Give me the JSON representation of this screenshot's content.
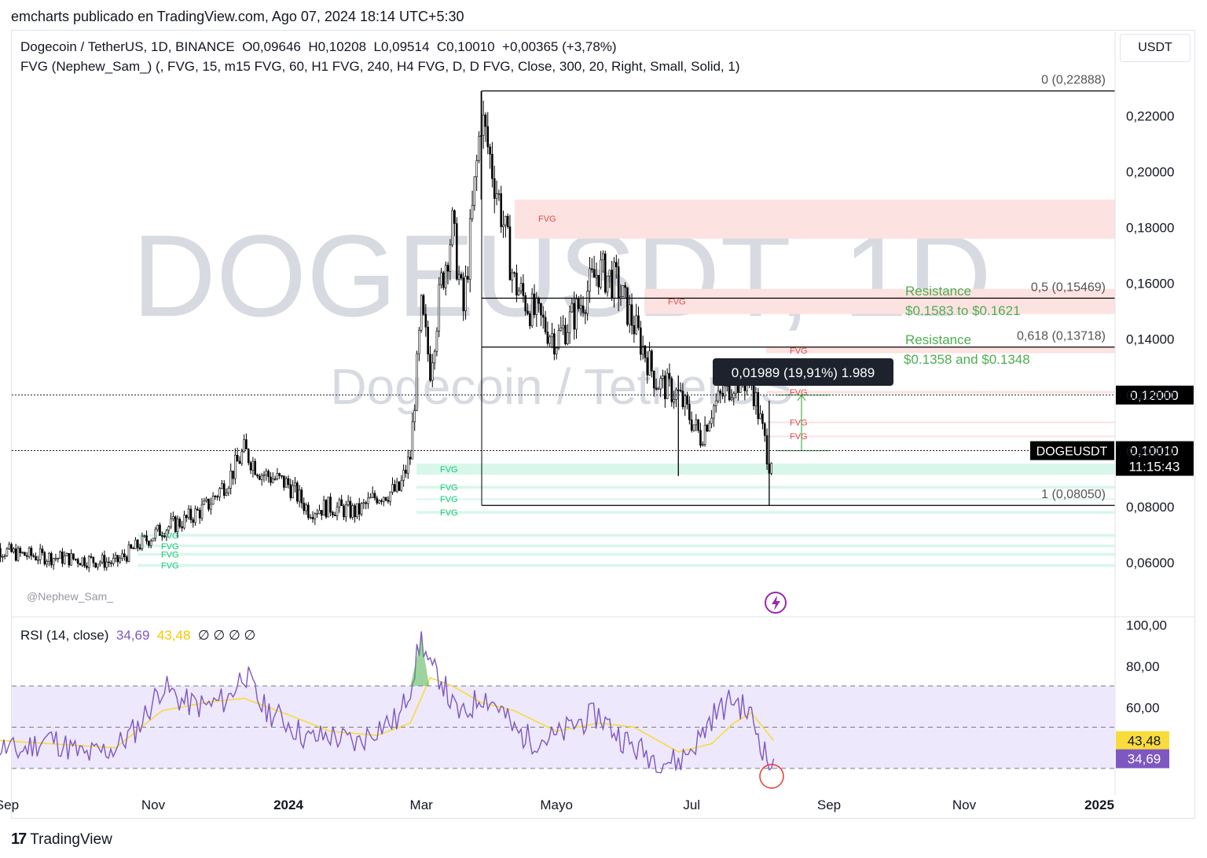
{
  "header": {
    "published": "emcharts publicado en TradingView.com, Ago 07, 2024 18:14 UTC+5:30",
    "symbol_line": "Dogecoin / TetherUS, 1D, BINANCE  O0,09646  H0,10208  L0,09514  C0,10010  +0,00365 (+3,78%)",
    "indicator_line": "FVG (Nephew_Sam_) (, FVG, 15, m15 FVG, 60, H1 FVG, 240, H4 FVG, D, D FVG, Close, 300, 20, Right, Small, Solid, 1)",
    "currency_button": "USDT"
  },
  "watermark": {
    "big": "DOGEUSDT, 1D",
    "sub": "Dogecoin / TetherUS",
    "author": "@Nephew_Sam_"
  },
  "footer": {
    "logo": "17",
    "brand": "TradingView"
  },
  "rsi_legend": {
    "name": "RSI (14, close)",
    "rsi": "34,69",
    "ma": "43,48",
    "extras": "∅ ∅ ∅ ∅"
  },
  "colors": {
    "candle": "#000000",
    "fib": "#000000",
    "fvg_bear": "#fde2e2",
    "fvg_bull": "#d8f7ea",
    "fvg_bear_text": "#e04a4a",
    "fvg_bull_text": "#17c77a",
    "resistance_text": "#4caf50",
    "rsi_line": "#7e57c2",
    "rsi_ma": "#f7dc3c",
    "rsi_band": "#ede8fb",
    "circle": "#e53935"
  },
  "chart_data": [
    {
      "type": "candlestick",
      "symbol": "DOGEUSDT",
      "timeframe": "1D",
      "x_axis_labels": [
        "Sep",
        "Nov",
        "2024",
        "Mar",
        "Mayo",
        "Jul",
        "Sep",
        "Nov",
        "2025"
      ],
      "y_ticks": [
        "0,22000",
        "0,20000",
        "0,18000",
        "0,16000",
        "0,14000",
        "0,12000",
        "0,10000",
        "0,08000",
        "0,06000"
      ],
      "ylim": [
        0.052,
        0.236
      ],
      "series": [
        {
          "name": "",
          "x": [
            "2023-08-17",
            "2023-09-01",
            "2023-09-15",
            "2023-10-01",
            "2023-10-15",
            "2023-10-25",
            "2023-11-05",
            "2023-11-15",
            "2023-11-25",
            "2023-12-05",
            "2023-12-12",
            "2023-12-20",
            "2024-01-01",
            "2024-01-10",
            "2024-01-20",
            "2024-02-01",
            "2024-02-10",
            "2024-02-20",
            "2024-02-25",
            "2024-03-01",
            "2024-03-05",
            "2024-03-10",
            "2024-03-15",
            "2024-03-20",
            "2024-03-28",
            "2024-04-05",
            "2024-04-12",
            "2024-04-20",
            "2024-05-01",
            "2024-05-10",
            "2024-05-20",
            "2024-05-28",
            "2024-06-05",
            "2024-06-15",
            "2024-06-25",
            "2024-07-05",
            "2024-07-10",
            "2024-07-20",
            "2024-07-28",
            "2024-08-05",
            "2024-08-07"
          ],
          "close": [
            0.066,
            0.063,
            0.062,
            0.061,
            0.06,
            0.066,
            0.072,
            0.075,
            0.08,
            0.09,
            0.1,
            0.092,
            0.088,
            0.079,
            0.08,
            0.078,
            0.084,
            0.086,
            0.098,
            0.15,
            0.13,
            0.16,
            0.18,
            0.15,
            0.22,
            0.19,
            0.16,
            0.15,
            0.14,
            0.15,
            0.165,
            0.16,
            0.145,
            0.125,
            0.12,
            0.105,
            0.115,
            0.125,
            0.125,
            0.096,
            0.1001
          ]
        }
      ],
      "horizontal_lines": [
        {
          "label": "0 (0,22888)",
          "value": 0.22888
        },
        {
          "label": "0,5 (0,15469)",
          "value": 0.15469
        },
        {
          "label": "0,618 (0,13718)",
          "value": 0.13718
        },
        {
          "label": "1 (0,08050)",
          "value": 0.0805
        }
      ],
      "price_labels": [
        {
          "label": "0,12000",
          "value": 0.12
        },
        {
          "label": "0,10010",
          "value": 0.1001,
          "name": "DOGEUSDT",
          "countdown": "11:15:43"
        }
      ],
      "annotations": [
        {
          "text": "Resistance",
          "sub": "$0.1583 to $0.1621"
        },
        {
          "text": "Resistance",
          "sub": "$0.1358 and $0.1348"
        },
        {
          "text": "0,01989 (19,91%) 1.989"
        }
      ],
      "fvg_zones": [
        {
          "label": "FVG",
          "kind": "bearish",
          "low": 0.176,
          "high": 0.19
        },
        {
          "label": "FVG",
          "kind": "bearish",
          "low": 0.149,
          "high": 0.158
        },
        {
          "label": "FVG",
          "kind": "bearish",
          "low": 0.135,
          "high": 0.137
        },
        {
          "label": "FVG",
          "kind": "bearish",
          "low": 0.1205,
          "high": 0.1215
        },
        {
          "label": "FVG",
          "kind": "bearish",
          "low": 0.11,
          "high": 0.1105
        },
        {
          "label": "FVG",
          "kind": "bearish",
          "low": 0.105,
          "high": 0.1055
        },
        {
          "label": "FVG",
          "kind": "bullish",
          "low": 0.0915,
          "high": 0.0955
        },
        {
          "label": "FVG",
          "kind": "bullish",
          "low": 0.0865,
          "high": 0.0875
        },
        {
          "label": "FVG",
          "kind": "bullish",
          "low": 0.0825,
          "high": 0.083
        },
        {
          "label": "FVG",
          "kind": "bullish",
          "low": 0.0775,
          "high": 0.0785
        },
        {
          "label": "FVG",
          "kind": "bullish",
          "low": 0.0693,
          "high": 0.0703
        },
        {
          "label": "FVG",
          "kind": "bullish",
          "low": 0.0655,
          "high": 0.0665
        },
        {
          "label": "FVG",
          "kind": "bullish",
          "low": 0.0625,
          "high": 0.0635
        },
        {
          "label": "FVG",
          "kind": "bullish",
          "low": 0.0585,
          "high": 0.0595
        }
      ]
    },
    {
      "type": "line",
      "title": "RSI (14, close)",
      "y_ticks": [
        "100,00",
        "80,00",
        "60,00"
      ],
      "ylim": [
        20,
        100
      ],
      "band": [
        30,
        70
      ],
      "midline": 50,
      "series": [
        {
          "name": "RSI",
          "last_label": "34,69",
          "x": [
            "2023-08-17",
            "2023-09-01",
            "2023-09-15",
            "2023-10-01",
            "2023-10-15",
            "2023-10-25",
            "2023-11-05",
            "2023-11-15",
            "2023-11-25",
            "2023-12-05",
            "2023-12-12",
            "2023-12-20",
            "2024-01-01",
            "2024-01-10",
            "2024-01-20",
            "2024-02-01",
            "2024-02-10",
            "2024-02-20",
            "2024-02-25",
            "2024-03-01",
            "2024-03-05",
            "2024-03-10",
            "2024-03-15",
            "2024-03-20",
            "2024-03-28",
            "2024-04-05",
            "2024-04-12",
            "2024-04-20",
            "2024-05-01",
            "2024-05-10",
            "2024-05-20",
            "2024-05-28",
            "2024-06-05",
            "2024-06-15",
            "2024-06-25",
            "2024-07-05",
            "2024-07-10",
            "2024-07-20",
            "2024-07-28",
            "2024-08-05",
            "2024-08-07"
          ],
          "values": [
            42,
            38,
            45,
            36,
            40,
            50,
            70,
            62,
            60,
            64,
            77,
            60,
            52,
            44,
            46,
            42,
            50,
            54,
            70,
            93,
            78,
            74,
            60,
            55,
            66,
            60,
            48,
            44,
            45,
            52,
            56,
            47,
            40,
            35,
            33,
            45,
            55,
            64,
            55,
            32,
            34.69
          ]
        },
        {
          "name": "RSI MA",
          "last_label": "43,48",
          "x": [
            "2023-08-17",
            "2023-09-15",
            "2023-10-15",
            "2023-11-05",
            "2023-11-25",
            "2023-12-12",
            "2024-01-01",
            "2024-01-20",
            "2024-02-10",
            "2024-02-25",
            "2024-03-05",
            "2024-03-15",
            "2024-03-28",
            "2024-04-12",
            "2024-05-01",
            "2024-05-20",
            "2024-06-05",
            "2024-06-25",
            "2024-07-10",
            "2024-07-20",
            "2024-07-28",
            "2024-08-07"
          ],
          "values": [
            44,
            42,
            40,
            58,
            62,
            64,
            56,
            48,
            46,
            52,
            74,
            70,
            62,
            58,
            48,
            52,
            50,
            38,
            42,
            52,
            57,
            43.48
          ]
        }
      ]
    }
  ]
}
